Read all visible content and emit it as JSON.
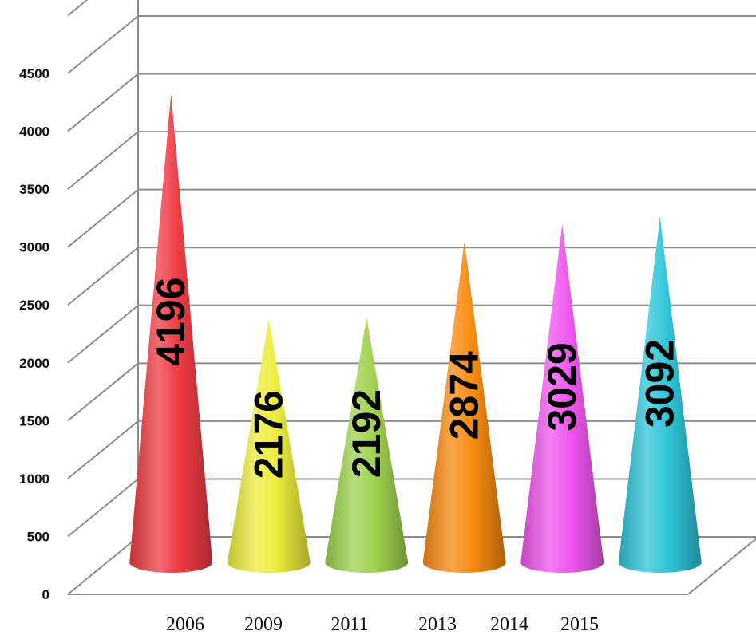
{
  "chart_data": {
    "type": "bar",
    "subtype": "3d-cone",
    "categories": [
      "2006",
      "2009",
      "2011",
      "2013",
      "2014",
      "2015"
    ],
    "values": [
      4196,
      2176,
      2192,
      2874,
      3029,
      3092
    ],
    "data_labels": [
      "4196",
      "2176",
      "2192",
      "2874",
      "3029",
      "3092"
    ],
    "colors": [
      "#ee3b43",
      "#ecec3c",
      "#9ed24e",
      "#f78a10",
      "#ee55ee",
      "#2ec4d8"
    ],
    "title": "",
    "xlabel": "",
    "ylabel": "",
    "ylim": [
      0,
      4500
    ],
    "yticks": [
      "0",
      "500",
      "1000",
      "1500",
      "2000",
      "2500",
      "3000",
      "3500",
      "4000",
      "4500"
    ],
    "grid": true,
    "legend": "none"
  }
}
